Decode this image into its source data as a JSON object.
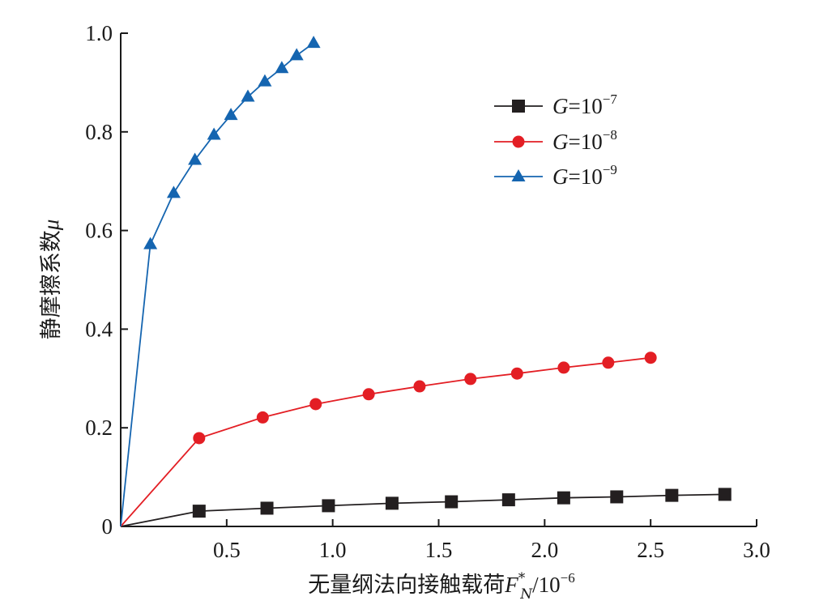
{
  "chart_data": {
    "type": "line",
    "xlabel": "无量纲法向接触载荷",
    "xlabel_symbol": "F",
    "xlabel_sup": "*",
    "xlabel_sub": "N",
    "xlabel_unit_base": "/10",
    "xlabel_unit_exp": "−6",
    "ylabel": "静摩擦系数",
    "ylabel_symbol": "μ",
    "xlim": [
      0,
      3.0
    ],
    "ylim": [
      0,
      1.0
    ],
    "x_ticks": [
      0.5,
      1.0,
      1.5,
      2.0,
      2.5,
      3.0
    ],
    "x_tick_labels": [
      "0.5",
      "1.0",
      "1.5",
      "2.0",
      "2.5",
      "3.0"
    ],
    "y_ticks": [
      0,
      0.2,
      0.4,
      0.6,
      0.8,
      1.0
    ],
    "y_tick_labels": [
      "0",
      "0.2",
      "0.4",
      "0.6",
      "0.8",
      "1.0"
    ],
    "grid": false,
    "legend_position": "top-right",
    "series": [
      {
        "name": "G=10−7",
        "name_base": "G=10",
        "name_exp": "−7",
        "color": "#231f20",
        "marker": "square",
        "points": [
          [
            0,
            0
          ],
          [
            0.37,
            0.031
          ],
          [
            0.69,
            0.037
          ],
          [
            0.98,
            0.042
          ],
          [
            1.28,
            0.047
          ],
          [
            1.56,
            0.05
          ],
          [
            1.83,
            0.054
          ],
          [
            2.09,
            0.058
          ],
          [
            2.34,
            0.06
          ],
          [
            2.6,
            0.063
          ],
          [
            2.85,
            0.065
          ]
        ]
      },
      {
        "name": "G=10−8",
        "name_base": "G=10",
        "name_exp": "−8",
        "color": "#e31e24",
        "marker": "circle",
        "points": [
          [
            0,
            0
          ],
          [
            0.37,
            0.179
          ],
          [
            0.67,
            0.221
          ],
          [
            0.92,
            0.248
          ],
          [
            1.17,
            0.268
          ],
          [
            1.41,
            0.284
          ],
          [
            1.65,
            0.299
          ],
          [
            1.87,
            0.31
          ],
          [
            2.09,
            0.322
          ],
          [
            2.3,
            0.332
          ],
          [
            2.5,
            0.342
          ]
        ]
      },
      {
        "name": "G=10−9",
        "name_base": "G=10",
        "name_exp": "−9",
        "color": "#1565b0",
        "marker": "triangle",
        "points": [
          [
            0,
            0
          ],
          [
            0.14,
            0.572
          ],
          [
            0.25,
            0.676
          ],
          [
            0.35,
            0.743
          ],
          [
            0.44,
            0.794
          ],
          [
            0.52,
            0.834
          ],
          [
            0.6,
            0.871
          ],
          [
            0.68,
            0.902
          ],
          [
            0.76,
            0.929
          ],
          [
            0.83,
            0.955
          ],
          [
            0.91,
            0.98
          ]
        ]
      }
    ]
  }
}
